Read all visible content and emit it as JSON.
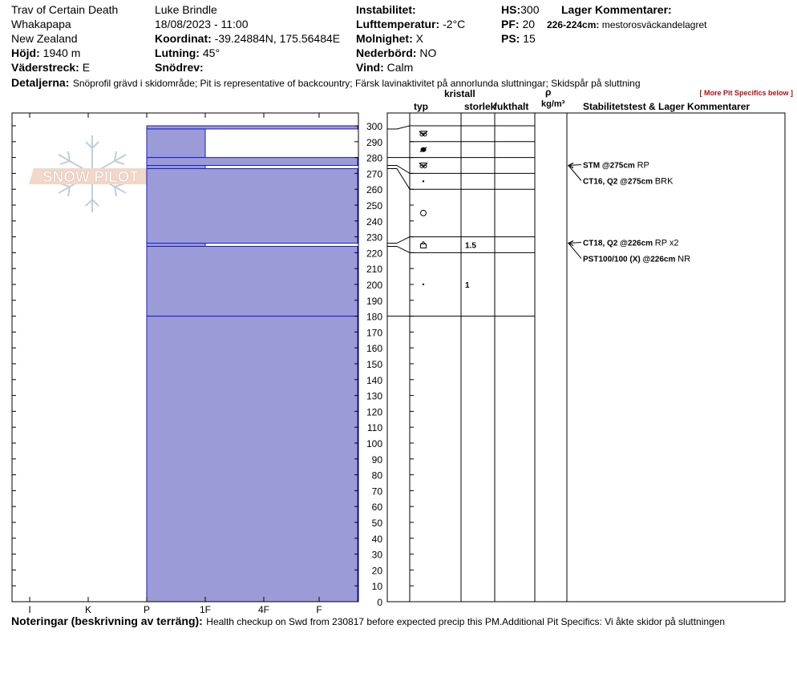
{
  "header": {
    "location": "Trav of Certain Death",
    "area": "Whakapapa",
    "country": "New Zealand",
    "elevation_label": "Höjd:",
    "elevation_value": "1940 m",
    "aspect_label": "Väderstreck:",
    "aspect_value": "E",
    "observer": "Luke Brindle",
    "datetime": "18/08/2023 - 11:00",
    "coord_label": "Koordinat:",
    "coord_value": "-39.24884N, 175.56484E",
    "slope_label": "Lutning:",
    "slope_value": "45°",
    "drift_label": "Snödrev:",
    "drift_value": "",
    "instability_label": "Instabilitet:",
    "instability_value": "",
    "airtemp_label": "Lufttemperatur:",
    "airtemp_value": "-2°C",
    "sky_label": "Molnighet:",
    "sky_value": "X",
    "precip_label": "Nederbörd:",
    "precip_value": "NO",
    "wind_label": "Vind:",
    "wind_value": "Calm",
    "hs_label": "HS:",
    "hs_value": "300",
    "pf_label": "PF:",
    "pf_value": "20",
    "ps_label": "PS:",
    "ps_value": "15",
    "layer_comments_title": "Lager Kommentarer:",
    "layer_comment_range": "226-224cm:",
    "layer_comment_text": "mestorosväckandelagret",
    "details_label": "Detaljerna:",
    "details_text": "Snöprofil grävd i skidområde;  Pit is representative of backcountry;  Färsk lavinaktivitet på annorlunda sluttningar;  Skidspår på sluttning",
    "more_link": "[ More Pit Specifics below ]"
  },
  "columns": {
    "crystal_title": "kristall",
    "type": "typ",
    "size": "storlek",
    "moisture": "fukthalt",
    "rho": "ρ",
    "density_unit": "kg/m³",
    "stability_title": "Stabilitetstest & Lager Kommentarer"
  },
  "footer": {
    "notes_label": "Noteringar (beskrivning av terräng):",
    "notes_text": "Health checkup on Swd from 230817 before expected precip this PM.Additional Pit Specifics: Vi åkte skidor på sluttningen"
  },
  "logo_text": "SNOW PILOT",
  "colors": {
    "layer_fill": "#9b9bd7",
    "layer_edge": "#1a1acc",
    "link_red": "#b01010"
  },
  "chart_data": {
    "type": "bar",
    "orientation": "horizontal",
    "y_axis_ticks": [
      0,
      10,
      20,
      30,
      40,
      50,
      60,
      70,
      80,
      90,
      100,
      110,
      120,
      130,
      140,
      150,
      160,
      170,
      180,
      190,
      200,
      210,
      220,
      230,
      240,
      250,
      260,
      270,
      280,
      290,
      300
    ],
    "ylim": [
      0,
      300
    ],
    "hardness_scale": [
      "I",
      "K",
      "P",
      "1F",
      "4F",
      "F"
    ],
    "layers": [
      {
        "top": 300,
        "bottom": 298,
        "hardness": "4F-"
      },
      {
        "top": 298,
        "bottom": 280,
        "hardness": "1F"
      },
      {
        "top": 280,
        "bottom": 275,
        "hardness": "4F-"
      },
      {
        "top": 275,
        "bottom": 273,
        "hardness": "1F"
      },
      {
        "top": 273,
        "bottom": 226,
        "hardness": "4F-"
      },
      {
        "top": 226,
        "bottom": 224,
        "hardness": "1F"
      },
      {
        "top": 224,
        "bottom": 180,
        "hardness": "4F-"
      },
      {
        "top": 180,
        "bottom": 0,
        "hardness": "4F-"
      }
    ],
    "crystal_rows": [
      {
        "top": 300,
        "bottom": 290,
        "type": "mixed-forms",
        "size": ""
      },
      {
        "top": 290,
        "bottom": 280,
        "type": "melt-freeze",
        "size": ""
      },
      {
        "top": 280,
        "bottom": 270,
        "type": "mixed-forms",
        "size": ""
      },
      {
        "top": 270,
        "bottom": 260,
        "type": "dot",
        "size": ""
      },
      {
        "top": 260,
        "bottom": 230,
        "type": "rounded",
        "size": ""
      },
      {
        "top": 230,
        "bottom": 220,
        "type": "facet-cup",
        "size": "1.5"
      },
      {
        "top": 220,
        "bottom": 180,
        "type": "dot",
        "size": "1"
      }
    ],
    "tests": [
      {
        "depth": 275,
        "label": "STM @275cm",
        "result": "RP"
      },
      {
        "depth": 275,
        "label": "CT16, Q2 @275cm",
        "result": "BRK"
      },
      {
        "depth": 226,
        "label": "CT18, Q2 @226cm",
        "result": "RP x2"
      },
      {
        "depth": 226,
        "label": "PST100/100 (X) @226cm",
        "result": "NR"
      }
    ]
  }
}
